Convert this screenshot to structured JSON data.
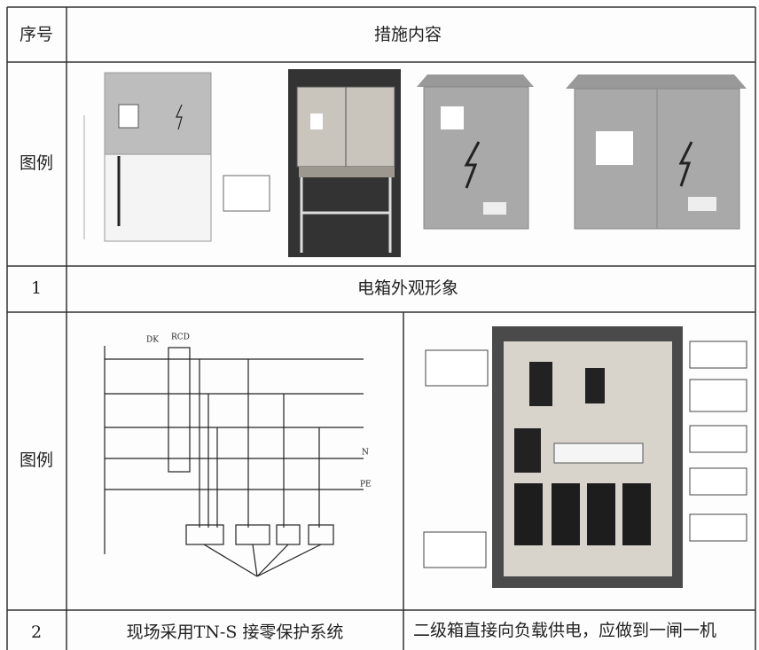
{
  "table": {
    "header": [
      "序号",
      "措施内容"
    ],
    "rows": [
      [
        "图例"
      ],
      [
        "1",
        "电箱外观形象"
      ],
      [
        "图例"
      ],
      [
        "2",
        "现场采用TN-S 接零保护系统",
        "二级箱直接向负载供电，应做到一闸一机"
      ]
    ],
    "circuit_labels": [
      "DK",
      "RCD",
      "N",
      "PE"
    ]
  }
}
